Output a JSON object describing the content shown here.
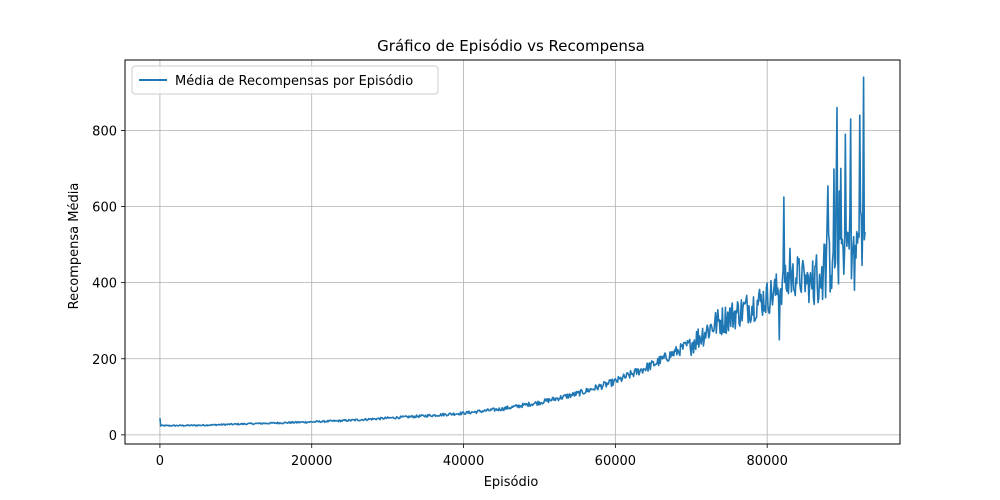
{
  "chart_data": {
    "type": "line",
    "title": "Gráfico de Episódio vs Recompensa",
    "xlabel": "Episódio",
    "ylabel": "Recompensa Média",
    "xlim": [
      -4600,
      97500
    ],
    "ylim": [
      -24,
      985
    ],
    "xticks": [
      0,
      20000,
      40000,
      60000,
      80000
    ],
    "yticks": [
      0,
      200,
      400,
      600,
      800
    ],
    "grid": true,
    "legend_position": "top-left",
    "series": [
      {
        "name": "Média de Recompensas por Episódio",
        "color": "#1f77b4",
        "x_start": 0,
        "x_end": 92900,
        "x_step": 100,
        "trend_points": [
          [
            0,
            24
          ],
          [
            5000,
            25
          ],
          [
            10000,
            28
          ],
          [
            15000,
            31
          ],
          [
            20000,
            34
          ],
          [
            25000,
            38
          ],
          [
            30000,
            44
          ],
          [
            35000,
            50
          ],
          [
            40000,
            57
          ],
          [
            45000,
            68
          ],
          [
            50000,
            85
          ],
          [
            55000,
            108
          ],
          [
            60000,
            140
          ],
          [
            65000,
            185
          ],
          [
            70000,
            240
          ],
          [
            73000,
            290
          ],
          [
            75000,
            310
          ],
          [
            78000,
            340
          ],
          [
            80000,
            360
          ],
          [
            82000,
            390
          ],
          [
            84000,
            420
          ],
          [
            86000,
            390
          ],
          [
            88000,
            450
          ],
          [
            90000,
            500
          ],
          [
            92000,
            500
          ],
          [
            92900,
            510
          ]
        ],
        "spikes": [
          [
            0,
            44
          ],
          [
            81600,
            250
          ],
          [
            82200,
            625
          ],
          [
            83000,
            490
          ],
          [
            89200,
            860
          ],
          [
            89700,
            700
          ],
          [
            90300,
            790
          ],
          [
            91000,
            830
          ],
          [
            91500,
            380
          ],
          [
            92200,
            840
          ],
          [
            92700,
            940
          ]
        ]
      }
    ]
  }
}
